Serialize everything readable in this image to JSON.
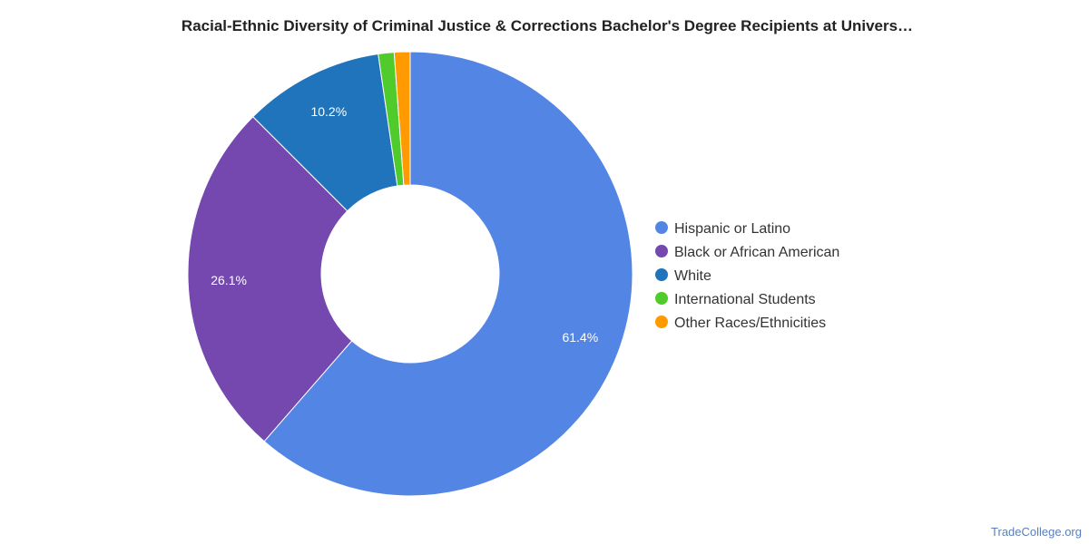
{
  "chart_data": {
    "type": "pie",
    "subtype": "donut",
    "title": "Racial-Ethnic Diversity of Criminal Justice & Corrections Bachelor's Degree Recipients at Univers…",
    "legend_placement": "right",
    "slices": [
      {
        "label": "Hispanic or Latino",
        "value": 61.4,
        "value_label": "61.4%",
        "color": "#5386e4"
      },
      {
        "label": "Black or African American",
        "value": 26.1,
        "value_label": "26.1%",
        "color": "#7548b0"
      },
      {
        "label": "White",
        "value": 10.2,
        "value_label": "10.2%",
        "color": "#1f74bb"
      },
      {
        "label": "International Students",
        "value": 1.15,
        "value_label": "",
        "color": "#4fcb2b"
      },
      {
        "label": "Other Races/Ethnicities",
        "value": 1.15,
        "value_label": "",
        "color": "#ff9a00"
      }
    ]
  },
  "footer": {
    "source": "TradeCollege.org"
  }
}
